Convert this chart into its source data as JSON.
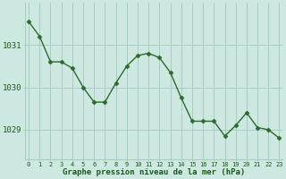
{
  "x": [
    0,
    1,
    2,
    3,
    4,
    5,
    6,
    7,
    8,
    9,
    10,
    11,
    12,
    13,
    14,
    15,
    16,
    17,
    18,
    19,
    20,
    21,
    22,
    23
  ],
  "y": [
    1031.55,
    1031.2,
    1030.6,
    1030.6,
    1030.45,
    1030.0,
    1029.65,
    1029.65,
    1030.1,
    1030.5,
    1030.75,
    1030.8,
    1030.7,
    1030.35,
    1029.75,
    1029.2,
    1029.2,
    1029.2,
    1028.85,
    1029.1,
    1029.4,
    1029.05,
    1029.0,
    1028.8
  ],
  "line_color": "#2d6a2d",
  "marker_color": "#2d6a2d",
  "background_color": "#cce8e0",
  "plot_bg_color": "#cce8e0",
  "grid_color": "#aaccc0",
  "text_color": "#1a5a1a",
  "label_color": "#1a5a1a",
  "xlabel": "Graphe pression niveau de la mer (hPa)",
  "yticks": [
    1029,
    1030,
    1031
  ],
  "ylim": [
    1028.3,
    1032.0
  ],
  "xlim": [
    -0.3,
    23.3
  ]
}
